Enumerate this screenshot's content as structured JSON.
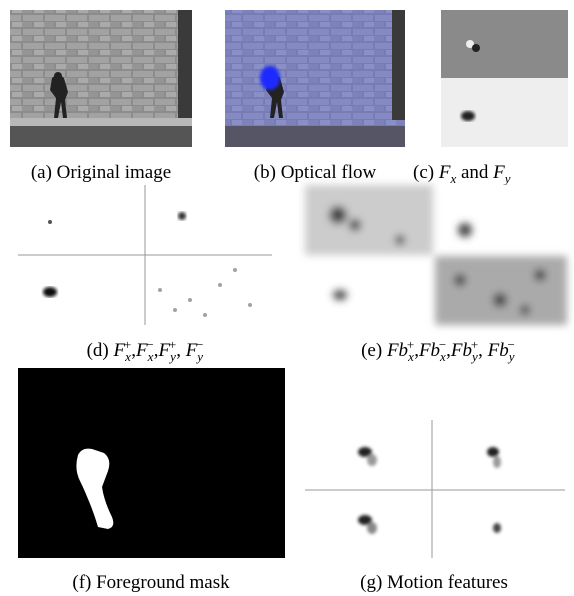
{
  "captions": {
    "a": [
      "(a) Original image"
    ],
    "b": [
      "(b) Optical flow"
    ],
    "c": [
      "(c) ",
      "F",
      "x",
      " and ",
      "F",
      "y"
    ],
    "d": [
      "(d) ",
      "F",
      "x",
      "+",
      ",",
      "F",
      "x",
      "−",
      ",",
      "F",
      "y",
      "+",
      ", ",
      "F",
      "y",
      "−"
    ],
    "e": [
      "(e) ",
      "Fb",
      "x",
      "+",
      ",",
      "Fb",
      "x",
      "−",
      ",",
      "Fb",
      "y",
      "+",
      ", ",
      "Fb",
      "y",
      "−"
    ],
    "f": [
      "(f) Foreground mask"
    ],
    "g": [
      "(g) Motion features"
    ]
  }
}
